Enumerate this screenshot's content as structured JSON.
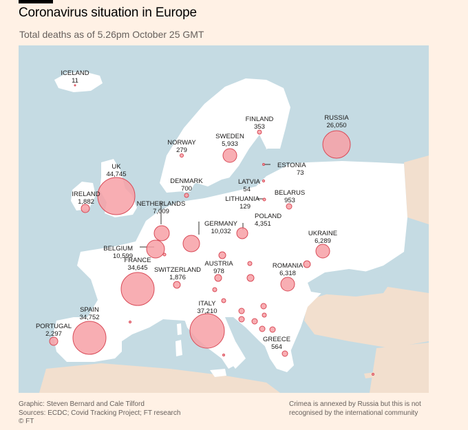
{
  "header": {
    "title": "Coronavirus situation in Europe",
    "subtitle": "Total deaths as of 5.26pm October 25 GMT"
  },
  "colors": {
    "background": "#fff1e5",
    "sea": "#c5dbe3",
    "land_europe": "#ffffff",
    "land_other": "#f2dfce",
    "bubble_fill": "#f7a0a6",
    "bubble_stroke": "#d94a57"
  },
  "countries": [
    {
      "name": "ICELAND",
      "deaths": "11"
    },
    {
      "name": "FINLAND",
      "deaths": "353"
    },
    {
      "name": "RUSSIA",
      "deaths": "26,050"
    },
    {
      "name": "NORWAY",
      "deaths": "279"
    },
    {
      "name": "SWEDEN",
      "deaths": "5,933"
    },
    {
      "name": "ESTONIA",
      "deaths": "73"
    },
    {
      "name": "UK",
      "deaths": "44,745"
    },
    {
      "name": "DENMARK",
      "deaths": "700"
    },
    {
      "name": "LATVIA",
      "deaths": "54"
    },
    {
      "name": "IRELAND",
      "deaths": "1,882"
    },
    {
      "name": "LITHUANIA",
      "deaths": "129"
    },
    {
      "name": "BELARUS",
      "deaths": "953"
    },
    {
      "name": "NETHERLANDS",
      "deaths": "7,009"
    },
    {
      "name": "POLAND",
      "deaths": "4,351"
    },
    {
      "name": "GERMANY",
      "deaths": "10,032"
    },
    {
      "name": "UKRAINE",
      "deaths": "6,289"
    },
    {
      "name": "BELGIUM",
      "deaths": "10,599"
    },
    {
      "name": "FRANCE",
      "deaths": "34,645"
    },
    {
      "name": "AUSTRIA",
      "deaths": "978"
    },
    {
      "name": "ROMANIA",
      "deaths": "6,318"
    },
    {
      "name": "SWITZERLAND",
      "deaths": "1,876"
    },
    {
      "name": "ITALY",
      "deaths": "37,210"
    },
    {
      "name": "SPAIN",
      "deaths": "34,752"
    },
    {
      "name": "PORTUGAL",
      "deaths": "2,297"
    },
    {
      "name": "GREECE",
      "deaths": "564"
    }
  ],
  "footer": {
    "credit": "Graphic: Steven Bernard and Cale Tilford",
    "sources": "Sources: ECDC; Covid Tracking Project; FT research",
    "copyright": "© FT",
    "note_line1": "Crimea is annexed by Russia but this is not",
    "note_line2": "recognised by the international community"
  }
}
